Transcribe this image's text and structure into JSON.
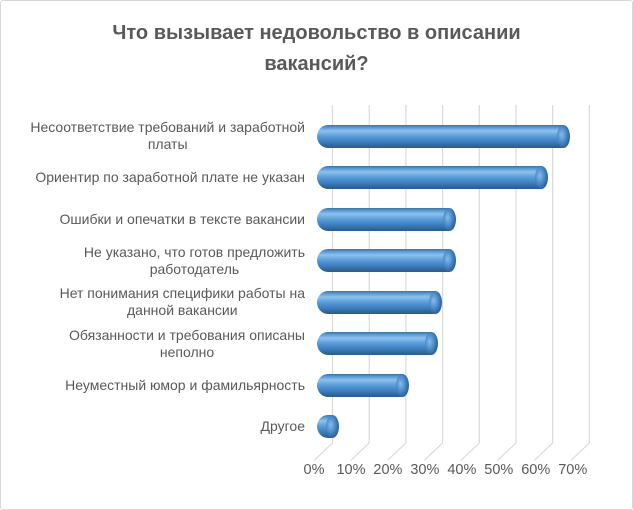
{
  "chart": {
    "title": "Что вызывает недовольство в описании\nвакансий?"
  },
  "chart_data": {
    "type": "bar",
    "orientation": "horizontal",
    "style": "3d-cylinder",
    "title": "Что вызывает недовольство в описании вакансий?",
    "categories": [
      "Несоответствие требований и заработной\nплаты",
      "Ориентир по заработной плате не указан",
      "Ошибки и опечатки в тексте вакансии",
      "Не указано, что готов предложить\nработодатель",
      "Нет понимания специфики работы на\nданной вакансии",
      "Обязанности и требования описаны\nнеполно",
      "Неуместный юмор и фамильярность",
      "Другое"
    ],
    "values": [
      69,
      63,
      38,
      38,
      34,
      33,
      25,
      6
    ],
    "value_unit": "%",
    "xlim": [
      0,
      70
    ],
    "x_tick_labels": [
      "0%",
      "10%",
      "20%",
      "30%",
      "40%",
      "50%",
      "60%",
      "70%"
    ],
    "grid": true,
    "legend": false,
    "colors": {
      "bar": "#5B9BD5",
      "bar_highlight": "#8EC1EE",
      "bar_shadow": "#2B5D8A",
      "grid_line": "#D9D9D9",
      "text": "#595959",
      "border": "#D8D8D8",
      "background": "#FFFFFF"
    }
  }
}
